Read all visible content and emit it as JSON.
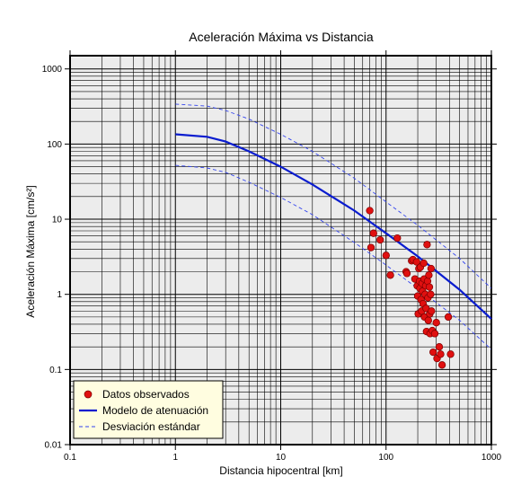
{
  "chart_data": {
    "type": "scatter",
    "title": "Aceleración Máxima vs Distancia",
    "xlabel": "Distancia hipocentral [km]",
    "ylabel": "Aceleración Máxima [cm/s²]",
    "xscale": "log",
    "yscale": "log",
    "xlim": [
      0.1,
      1000
    ],
    "ylim": [
      0.01,
      1500
    ],
    "grid": true,
    "legend_position": "bottom-left",
    "x_ticks": [
      "0.1",
      "1",
      "10",
      "100",
      "1000"
    ],
    "y_ticks": [
      "0.01",
      "0.1",
      "1",
      "10",
      "100",
      "1000"
    ],
    "series": [
      {
        "name": "Datos observados",
        "kind": "scatter",
        "color": "#e01010",
        "points": [
          [
            70,
            13
          ],
          [
            72,
            4.2
          ],
          [
            76,
            6.5
          ],
          [
            88,
            5.3
          ],
          [
            100,
            3.3
          ],
          [
            110,
            1.8
          ],
          [
            128,
            5.6
          ],
          [
            155,
            2.0
          ],
          [
            158,
            1.9
          ],
          [
            175,
            2.8
          ],
          [
            180,
            2.9
          ],
          [
            188,
            1.6
          ],
          [
            195,
            2.7
          ],
          [
            198,
            1.3
          ],
          [
            200,
            0.95
          ],
          [
            202,
            0.55
          ],
          [
            205,
            2.2
          ],
          [
            208,
            1.5
          ],
          [
            210,
            1.2
          ],
          [
            212,
            2.3
          ],
          [
            215,
            0.85
          ],
          [
            218,
            0.6
          ],
          [
            220,
            1.4
          ],
          [
            222,
            1.1
          ],
          [
            225,
            0.75
          ],
          [
            228,
            2.6
          ],
          [
            230,
            1.6
          ],
          [
            232,
            0.5
          ],
          [
            235,
            1.0
          ],
          [
            238,
            1.3
          ],
          [
            240,
            0.65
          ],
          [
            242,
            0.32
          ],
          [
            245,
            4.6
          ],
          [
            248,
            1.5
          ],
          [
            250,
            0.9
          ],
          [
            252,
            0.45
          ],
          [
            255,
            1.8
          ],
          [
            258,
            1.25
          ],
          [
            260,
            0.55
          ],
          [
            262,
            0.3
          ],
          [
            265,
            1.0
          ],
          [
            268,
            2.2
          ],
          [
            270,
            0.6
          ],
          [
            275,
            0.33
          ],
          [
            280,
            0.17
          ],
          [
            290,
            0.3
          ],
          [
            300,
            0.42
          ],
          [
            305,
            0.14
          ],
          [
            320,
            0.2
          ],
          [
            330,
            0.16
          ],
          [
            340,
            0.115
          ],
          [
            390,
            0.5
          ],
          [
            410,
            0.16
          ]
        ]
      },
      {
        "name": "Modelo de atenuación",
        "kind": "line",
        "color": "#0a1ccf",
        "points": [
          [
            1,
            135
          ],
          [
            2,
            125
          ],
          [
            3,
            108
          ],
          [
            5,
            80
          ],
          [
            10,
            50
          ],
          [
            20,
            29
          ],
          [
            50,
            13
          ],
          [
            100,
            6.5
          ],
          [
            200,
            3.2
          ],
          [
            500,
            1.15
          ],
          [
            1000,
            0.47
          ]
        ]
      },
      {
        "name": "Desviación estándar",
        "kind": "dashed",
        "color": "#3344ee",
        "points": [
          [
            1,
            340
          ],
          [
            2,
            320
          ],
          [
            3,
            280
          ],
          [
            5,
            215
          ],
          [
            10,
            135
          ],
          [
            20,
            80
          ],
          [
            50,
            35
          ],
          [
            100,
            17
          ],
          [
            200,
            8.3
          ],
          [
            500,
            3.0
          ],
          [
            1000,
            1.2
          ]
        ]
      },
      {
        "name": "",
        "kind": "dashed",
        "color": "#3344ee",
        "points": [
          [
            1,
            52
          ],
          [
            2,
            48
          ],
          [
            3,
            42
          ],
          [
            5,
            31
          ],
          [
            10,
            19.5
          ],
          [
            20,
            11.5
          ],
          [
            50,
            4.9
          ],
          [
            100,
            2.45
          ],
          [
            200,
            1.2
          ],
          [
            500,
            0.45
          ],
          [
            1000,
            0.185
          ]
        ]
      }
    ]
  }
}
